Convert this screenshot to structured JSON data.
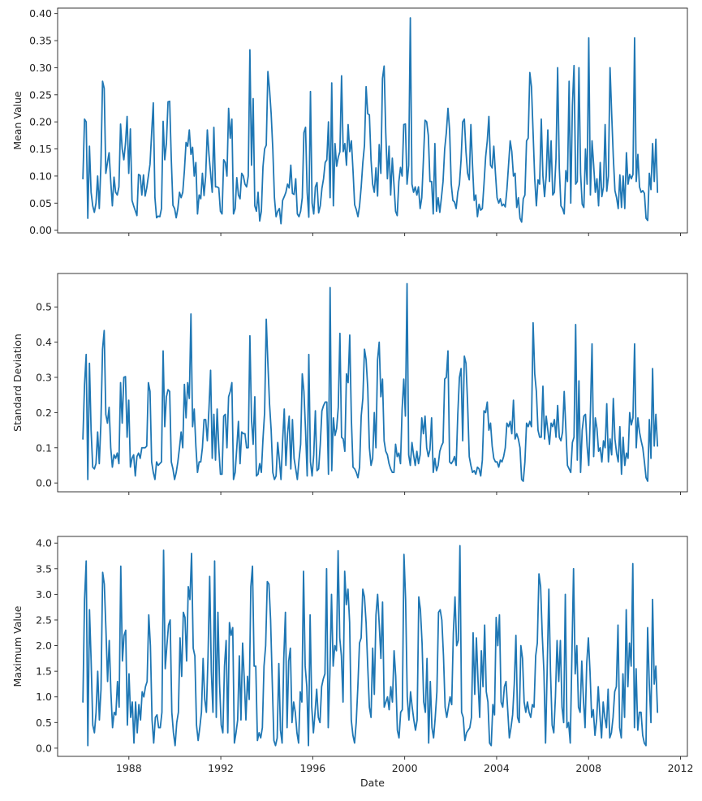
{
  "chart_data": [
    {
      "type": "line",
      "xlabel": "",
      "ylabel": "Mean Value",
      "ylim": [
        -0.005,
        0.41
      ],
      "yticks": [
        "0.00",
        "0.05",
        "0.10",
        "0.15",
        "0.20",
        "0.25",
        "0.30",
        "0.35",
        "0.40"
      ],
      "xticks": [],
      "xlim": [
        1984.9,
        2012.3
      ],
      "x_start": 1986.0,
      "x_end": 2011.0,
      "color": "#1f77b4",
      "grid": false,
      "values": [
        0.095,
        0.205,
        0.2,
        0.022,
        0.155,
        0.07,
        0.045,
        0.033,
        0.05,
        0.1,
        0.04,
        0.12,
        0.275,
        0.262,
        0.105,
        0.125,
        0.143,
        0.09,
        0.045,
        0.098,
        0.07,
        0.065,
        0.08,
        0.196,
        0.15,
        0.13,
        0.16,
        0.21,
        0.105,
        0.187,
        0.055,
        0.045,
        0.036,
        0.027,
        0.103,
        0.101,
        0.065,
        0.102,
        0.063,
        0.078,
        0.1,
        0.122,
        0.18,
        0.235,
        0.06,
        0.023,
        0.026,
        0.025,
        0.04,
        0.201,
        0.13,
        0.16,
        0.237,
        0.238,
        0.13,
        0.046,
        0.04,
        0.023,
        0.04,
        0.07,
        0.06,
        0.07,
        0.11,
        0.162,
        0.155,
        0.185,
        0.14,
        0.153,
        0.1,
        0.125,
        0.03,
        0.065,
        0.058,
        0.105,
        0.064,
        0.1,
        0.185,
        0.14,
        0.105,
        0.07,
        0.19,
        0.08,
        0.08,
        0.078,
        0.035,
        0.03,
        0.13,
        0.125,
        0.1,
        0.225,
        0.17,
        0.205,
        0.03,
        0.04,
        0.097,
        0.065,
        0.058,
        0.105,
        0.1,
        0.085,
        0.08,
        0.1,
        0.333,
        0.12,
        0.243,
        0.045,
        0.035,
        0.07,
        0.017,
        0.035,
        0.117,
        0.15,
        0.157,
        0.293,
        0.26,
        0.215,
        0.15,
        0.06,
        0.025,
        0.035,
        0.04,
        0.012,
        0.055,
        0.062,
        0.07,
        0.085,
        0.078,
        0.12,
        0.068,
        0.066,
        0.095,
        0.03,
        0.025,
        0.035,
        0.06,
        0.18,
        0.19,
        0.07,
        0.024,
        0.256,
        0.05,
        0.03,
        0.08,
        0.088,
        0.032,
        0.045,
        0.077,
        0.095,
        0.125,
        0.13,
        0.2,
        0.06,
        0.272,
        0.045,
        0.16,
        0.118,
        0.135,
        0.145,
        0.285,
        0.145,
        0.16,
        0.12,
        0.195,
        0.145,
        0.165,
        0.11,
        0.047,
        0.038,
        0.025,
        0.045,
        0.08,
        0.125,
        0.157,
        0.265,
        0.215,
        0.213,
        0.13,
        0.085,
        0.07,
        0.115,
        0.063,
        0.158,
        0.105,
        0.28,
        0.303,
        0.18,
        0.095,
        0.155,
        0.065,
        0.133,
        0.085,
        0.035,
        0.027,
        0.09,
        0.116,
        0.1,
        0.195,
        0.196,
        0.085,
        0.12,
        0.392,
        0.085,
        0.07,
        0.08,
        0.065,
        0.08,
        0.04,
        0.06,
        0.13,
        0.203,
        0.2,
        0.175,
        0.09,
        0.09,
        0.03,
        0.16,
        0.035,
        0.06,
        0.033,
        0.06,
        0.09,
        0.15,
        0.18,
        0.225,
        0.185,
        0.085,
        0.055,
        0.052,
        0.04,
        0.07,
        0.085,
        0.13,
        0.2,
        0.205,
        0.145,
        0.105,
        0.093,
        0.195,
        0.12,
        0.055,
        0.065,
        0.025,
        0.048,
        0.037,
        0.04,
        0.085,
        0.135,
        0.165,
        0.21,
        0.12,
        0.115,
        0.155,
        0.105,
        0.06,
        0.05,
        0.058,
        0.045,
        0.048,
        0.043,
        0.075,
        0.12,
        0.165,
        0.145,
        0.1,
        0.105,
        0.042,
        0.06,
        0.022,
        0.015,
        0.058,
        0.065,
        0.165,
        0.17,
        0.291,
        0.265,
        0.18,
        0.095,
        0.045,
        0.093,
        0.085,
        0.205,
        0.1,
        0.062,
        0.1,
        0.185,
        0.09,
        0.165,
        0.065,
        0.07,
        0.133,
        0.3,
        0.115,
        0.045,
        0.04,
        0.03,
        0.11,
        0.09,
        0.275,
        0.05,
        0.23,
        0.304,
        0.085,
        0.09,
        0.3,
        0.105,
        0.048,
        0.042,
        0.15,
        0.085,
        0.355,
        0.065,
        0.165,
        0.12,
        0.07,
        0.095,
        0.045,
        0.125,
        0.062,
        0.08,
        0.195,
        0.072,
        0.1,
        0.3,
        0.215,
        0.135,
        0.073,
        0.06,
        0.04,
        0.102,
        0.042,
        0.1,
        0.04,
        0.143,
        0.085,
        0.103,
        0.095,
        0.103,
        0.355,
        0.09,
        0.14,
        0.08,
        0.07,
        0.073,
        0.068,
        0.022,
        0.018,
        0.105,
        0.075,
        0.16,
        0.09,
        0.168,
        0.07
      ]
    },
    {
      "type": "line",
      "xlabel": "",
      "ylabel": "Standard Deviation",
      "ylim": [
        -0.025,
        0.595
      ],
      "yticks": [
        "0.0",
        "0.1",
        "0.2",
        "0.3",
        "0.4",
        "0.5"
      ],
      "xticks": [],
      "xlim": [
        1984.9,
        2012.3
      ],
      "x_start": 1986.0,
      "x_end": 2011.0,
      "color": "#1f77b4",
      "grid": false,
      "values": [
        0.125,
        0.28,
        0.365,
        0.01,
        0.34,
        0.15,
        0.045,
        0.04,
        0.055,
        0.145,
        0.055,
        0.17,
        0.38,
        0.433,
        0.195,
        0.17,
        0.215,
        0.1,
        0.045,
        0.08,
        0.07,
        0.085,
        0.055,
        0.285,
        0.17,
        0.3,
        0.302,
        0.13,
        0.235,
        0.045,
        0.07,
        0.08,
        0.02,
        0.075,
        0.085,
        0.07,
        0.1,
        0.1,
        0.1,
        0.105,
        0.285,
        0.26,
        0.06,
        0.03,
        0.01,
        0.06,
        0.05,
        0.055,
        0.06,
        0.375,
        0.16,
        0.245,
        0.265,
        0.26,
        0.06,
        0.04,
        0.01,
        0.03,
        0.06,
        0.1,
        0.145,
        0.1,
        0.28,
        0.185,
        0.285,
        0.24,
        0.48,
        0.16,
        0.21,
        0.105,
        0.03,
        0.06,
        0.06,
        0.1,
        0.18,
        0.18,
        0.12,
        0.21,
        0.32,
        0.07,
        0.195,
        0.065,
        0.21,
        0.1,
        0.025,
        0.025,
        0.19,
        0.195,
        0.1,
        0.245,
        0.26,
        0.285,
        0.01,
        0.03,
        0.1,
        0.175,
        0.055,
        0.145,
        0.14,
        0.14,
        0.1,
        0.1,
        0.418,
        0.18,
        0.11,
        0.245,
        0.02,
        0.025,
        0.055,
        0.03,
        0.125,
        0.2,
        0.465,
        0.34,
        0.225,
        0.15,
        0.03,
        0.01,
        0.02,
        0.115,
        0.065,
        0.01,
        0.12,
        0.21,
        0.05,
        0.14,
        0.19,
        0.04,
        0.18,
        0.07,
        0.04,
        0.01,
        0.065,
        0.11,
        0.31,
        0.26,
        0.15,
        0.02,
        0.365,
        0.06,
        0.02,
        0.08,
        0.205,
        0.035,
        0.04,
        0.11,
        0.205,
        0.22,
        0.23,
        0.23,
        0.025,
        0.555,
        0.035,
        0.185,
        0.135,
        0.155,
        0.215,
        0.425,
        0.13,
        0.125,
        0.09,
        0.31,
        0.285,
        0.42,
        0.18,
        0.045,
        0.04,
        0.03,
        0.015,
        0.045,
        0.19,
        0.24,
        0.38,
        0.35,
        0.27,
        0.1,
        0.05,
        0.07,
        0.2,
        0.1,
        0.35,
        0.4,
        0.245,
        0.295,
        0.12,
        0.09,
        0.08,
        0.055,
        0.04,
        0.03,
        0.03,
        0.11,
        0.075,
        0.085,
        0.055,
        0.21,
        0.295,
        0.19,
        0.566,
        0.08,
        0.05,
        0.115,
        0.08,
        0.05,
        0.09,
        0.055,
        0.08,
        0.185,
        0.14,
        0.19,
        0.1,
        0.075,
        0.095,
        0.185,
        0.03,
        0.07,
        0.035,
        0.05,
        0.09,
        0.105,
        0.115,
        0.295,
        0.3,
        0.375,
        0.06,
        0.055,
        0.062,
        0.075,
        0.05,
        0.195,
        0.3,
        0.325,
        0.12,
        0.36,
        0.34,
        0.225,
        0.075,
        0.05,
        0.03,
        0.035,
        0.025,
        0.045,
        0.04,
        0.02,
        0.065,
        0.205,
        0.2,
        0.23,
        0.15,
        0.17,
        0.105,
        0.07,
        0.06,
        0.06,
        0.045,
        0.065,
        0.06,
        0.075,
        0.1,
        0.17,
        0.16,
        0.175,
        0.14,
        0.235,
        0.125,
        0.14,
        0.125,
        0.1,
        0.01,
        0.005,
        0.06,
        0.17,
        0.16,
        0.175,
        0.16,
        0.455,
        0.31,
        0.26,
        0.15,
        0.13,
        0.13,
        0.275,
        0.125,
        0.19,
        0.15,
        0.11,
        0.17,
        0.16,
        0.18,
        0.13,
        0.22,
        0.13,
        0.12,
        0.145,
        0.26,
        0.155,
        0.05,
        0.04,
        0.03,
        0.115,
        0.13,
        0.45,
        0.065,
        0.29,
        0.03,
        0.15,
        0.19,
        0.195,
        0.105,
        0.05,
        0.2,
        0.395,
        0.075,
        0.185,
        0.155,
        0.09,
        0.1,
        0.06,
        0.12,
        0.1,
        0.225,
        0.06,
        0.125,
        0.08,
        0.24,
        0.125,
        0.085,
        0.06,
        0.16,
        0.025,
        0.13,
        0.05,
        0.085,
        0.07,
        0.2,
        0.165,
        0.185,
        0.395,
        0.1,
        0.185,
        0.145,
        0.12,
        0.1,
        0.06,
        0.015,
        0.005,
        0.18,
        0.07,
        0.325,
        0.105,
        0.195,
        0.105
      ]
    },
    {
      "type": "line",
      "xlabel": "Date",
      "ylabel": "Maximum Value",
      "ylim": [
        -0.16,
        4.13
      ],
      "yticks": [
        "0.0",
        "0.5",
        "1.0",
        "1.5",
        "2.0",
        "2.5",
        "3.0",
        "3.5",
        "4.0"
      ],
      "xticks": [
        "1988",
        "1992",
        "1996",
        "2000",
        "2004",
        "2008",
        "2012"
      ],
      "xlim": [
        1984.9,
        2012.3
      ],
      "x_start": 1986.0,
      "x_end": 2011.0,
      "color": "#1f77b4",
      "grid": false,
      "values": [
        0.9,
        2.9,
        3.65,
        0.05,
        2.7,
        1.7,
        0.45,
        0.3,
        0.7,
        1.5,
        0.55,
        1.15,
        3.43,
        3.2,
        2.3,
        1.3,
        2.1,
        1.1,
        0.4,
        0.7,
        0.65,
        1.3,
        0.8,
        3.55,
        1.7,
        2.2,
        2.3,
        0.45,
        1.45,
        0.6,
        0.9,
        0.1,
        0.9,
        0.3,
        0.85,
        0.55,
        1.1,
        1.0,
        1.2,
        1.3,
        2.6,
        2.0,
        0.55,
        0.1,
        0.6,
        0.65,
        0.4,
        0.4,
        0.7,
        3.86,
        1.55,
        2.0,
        2.4,
        2.5,
        0.7,
        0.3,
        0.05,
        0.5,
        0.7,
        2.15,
        1.4,
        2.65,
        2.55,
        1.7,
        3.15,
        2.9,
        3.8,
        1.95,
        1.8,
        0.45,
        0.15,
        0.4,
        0.7,
        1.75,
        0.95,
        0.7,
        1.8,
        3.35,
        1.5,
        0.7,
        3.65,
        0.6,
        2.65,
        1.25,
        0.45,
        0.3,
        1.6,
        2.1,
        0.3,
        2.45,
        2.2,
        2.35,
        0.1,
        0.3,
        0.55,
        1.8,
        0.55,
        2.05,
        1.35,
        0.55,
        1.4,
        0.95,
        3.15,
        3.55,
        1.6,
        1.6,
        0.15,
        0.3,
        0.2,
        0.4,
        1.6,
        2.0,
        3.25,
        3.2,
        2.5,
        1.3,
        0.15,
        0.05,
        0.2,
        1.65,
        0.35,
        0.1,
        1.75,
        2.65,
        0.4,
        1.7,
        1.95,
        0.5,
        0.9,
        0.7,
        0.3,
        0.1,
        1.1,
        0.9,
        3.45,
        1.6,
        1.2,
        0.05,
        2.6,
        0.8,
        0.3,
        0.7,
        1.15,
        0.6,
        0.5,
        1.2,
        1.35,
        1.45,
        3.5,
        0.4,
        1.45,
        3.0,
        1.6,
        2.0,
        1.9,
        3.85,
        2.15,
        1.8,
        0.9,
        3.45,
        2.8,
        3.1,
        2.45,
        0.55,
        0.25,
        0.1,
        0.5,
        1.2,
        2.05,
        2.15,
        3.1,
        2.95,
        2.45,
        1.6,
        0.8,
        0.6,
        1.95,
        1.05,
        2.6,
        3.0,
        2.4,
        1.75,
        2.85,
        0.8,
        0.9,
        1.0,
        0.75,
        1.2,
        0.9,
        1.9,
        1.4,
        0.35,
        0.2,
        0.7,
        0.75,
        3.78,
        2.9,
        1.0,
        0.55,
        1.1,
        0.8,
        0.55,
        0.35,
        0.55,
        2.95,
        2.7,
        2.05,
        0.9,
        0.7,
        1.75,
        0.1,
        1.3,
        0.4,
        0.2,
        0.6,
        1.1,
        2.65,
        2.7,
        2.5,
        1.8,
        0.8,
        0.6,
        0.8,
        1.0,
        0.85,
        2.25,
        2.95,
        2.0,
        2.1,
        3.95,
        0.7,
        0.6,
        0.15,
        0.3,
        0.35,
        0.4,
        0.6,
        2.25,
        1.05,
        2.15,
        1.3,
        0.6,
        1.9,
        1.2,
        2.4,
        1.1,
        0.9,
        0.1,
        0.05,
        0.85,
        0.65,
        2.55,
        2.0,
        2.6,
        0.9,
        0.8,
        1.2,
        1.3,
        0.75,
        0.2,
        0.4,
        0.65,
        1.25,
        2.2,
        0.6,
        0.5,
        2.0,
        1.75,
        0.9,
        0.7,
        0.9,
        0.7,
        0.6,
        0.85,
        0.8,
        1.8,
        2.05,
        3.4,
        3.15,
        2.2,
        1.5,
        0.1,
        1.55,
        3.1,
        1.5,
        0.45,
        0.3,
        1.0,
        2.1,
        1.3,
        2.1,
        0.8,
        0.5,
        3.0,
        0.4,
        0.5,
        0.1,
        1.8,
        3.5,
        1.45,
        2.0,
        0.8,
        0.7,
        1.7,
        0.95,
        0.4,
        1.65,
        2.15,
        1.5,
        0.6,
        0.75,
        0.25,
        0.55,
        1.2,
        0.65,
        0.2,
        0.9,
        0.6,
        0.4,
        1.15,
        0.2,
        0.3,
        0.6,
        1.1,
        1.2,
        2.4,
        0.4,
        0.2,
        1.45,
        0.6,
        2.7,
        1.2,
        2.05,
        1.6,
        3.6,
        0.4,
        1.55,
        0.35,
        0.7,
        0.7,
        0.25,
        0.1,
        0.05,
        2.35,
        1.25,
        0.5,
        2.9,
        1.25,
        1.6,
        0.7
      ]
    }
  ]
}
